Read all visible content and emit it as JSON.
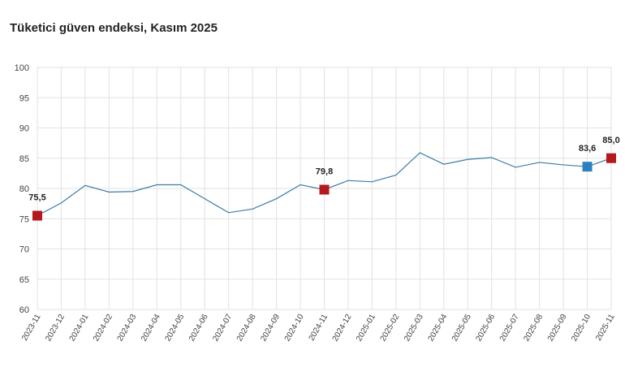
{
  "title": "Tüketici güven endeksi, Kasım 2025",
  "chart_data": {
    "type": "line",
    "title": "Tüketici güven endeksi, Kasım 2025",
    "xlabel": "",
    "ylabel": "",
    "ylim": [
      60,
      100
    ],
    "yticks": [
      60,
      65,
      70,
      75,
      80,
      85,
      90,
      95,
      100
    ],
    "grid": true,
    "categories": [
      "2023-11",
      "2023-12",
      "2024-01",
      "2024-02",
      "2024-03",
      "2024-04",
      "2024-05",
      "2024-06",
      "2024-07",
      "2024-08",
      "2024-09",
      "2024-10",
      "2024-11",
      "2024-12",
      "2025-01",
      "2025-02",
      "2025-03",
      "2025-04",
      "2025-05",
      "2025-06",
      "2025-07",
      "2025-08",
      "2025-09",
      "2025-10",
      "2025-11"
    ],
    "values": [
      75.5,
      77.6,
      80.5,
      79.4,
      79.5,
      80.6,
      80.6,
      78.3,
      76.0,
      76.6,
      78.3,
      80.6,
      79.8,
      81.3,
      81.1,
      82.2,
      85.9,
      84.0,
      84.8,
      85.1,
      83.5,
      84.3,
      83.9,
      83.6,
      85.0
    ],
    "line_color": "#3a7ca5",
    "highlights": [
      {
        "index": 0,
        "label": "75,5",
        "color": "#b5181d"
      },
      {
        "index": 12,
        "label": "79,8",
        "color": "#b5181d"
      },
      {
        "index": 23,
        "label": "83,6",
        "color": "#2e7fc0"
      },
      {
        "index": 24,
        "label": "85,0",
        "color": "#b5181d"
      }
    ]
  }
}
